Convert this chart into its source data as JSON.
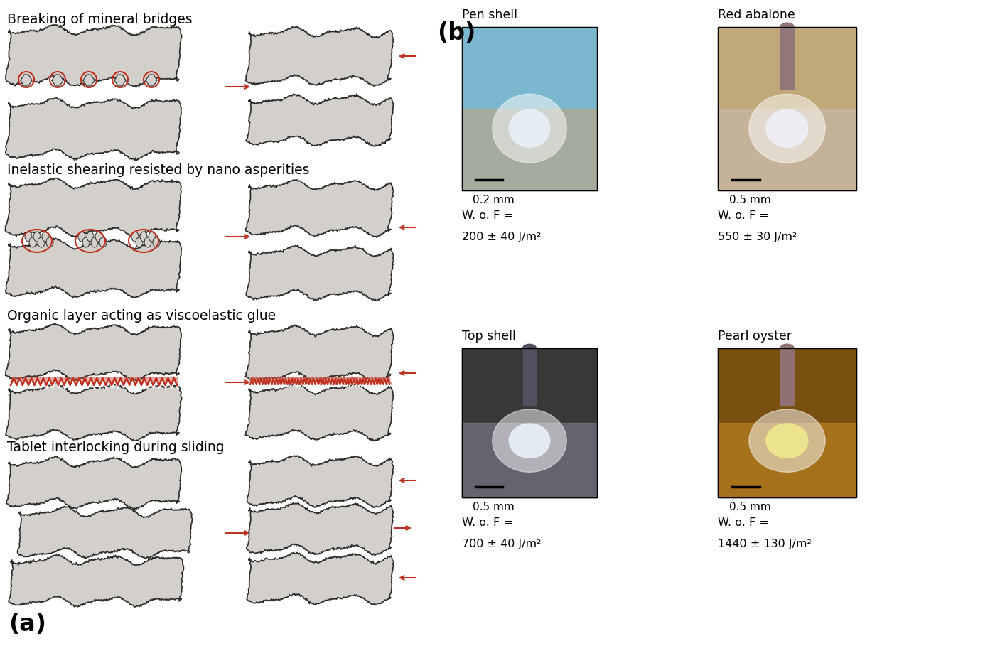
{
  "title_a": "(a)",
  "title_b": "(b)",
  "section_titles": [
    "Breaking of mineral bridges",
    "Inelastic shearing resisted by nano asperities",
    "Organic layer acting as viscoelastic glue",
    "Tablet interlocking during sliding"
  ],
  "photo_titles": [
    "Pen shell",
    "Red abalone",
    "Top shell",
    "Pearl oyster"
  ],
  "scale_bars": [
    "0.2 mm",
    "0.5 mm",
    "0.5 mm",
    "0.5 mm"
  ],
  "wof_label": "W. o. F =",
  "wof_values": [
    "200 ± 40 J/m²",
    "550 ± 30 J/m²",
    "700 ± 40 J/m²",
    "1440 ± 130 J/m²"
  ],
  "tablet_color": "#d3d0cb",
  "outline_color": "#2b2b2b",
  "red_color": "#c03020",
  "background_color": "#ffffff",
  "pen_shell_colors": [
    "#7ab8d0",
    "#c8b090",
    "#ddd8e8"
  ],
  "abalone_colors": [
    "#c8a878",
    "#d0c0b0",
    "#e8e0e8"
  ],
  "top_shell_colors": [
    "#383838",
    "#909098",
    "#e8e8f0"
  ],
  "pearl_oyster_colors": [
    "#7a5820",
    "#b88830",
    "#e8dca0"
  ]
}
